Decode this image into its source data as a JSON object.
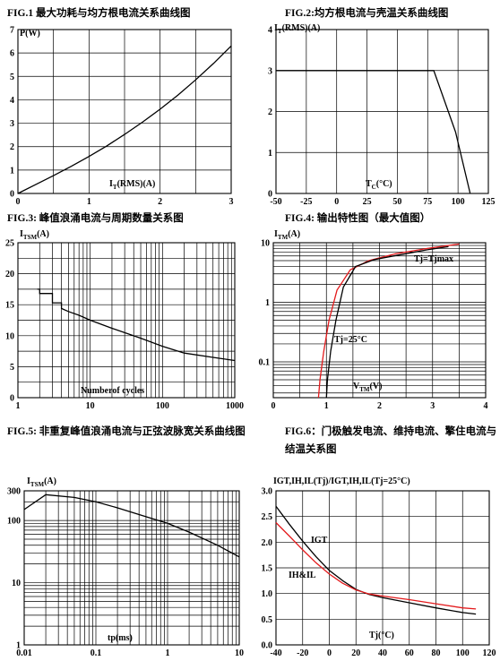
{
  "chart_data": [
    {
      "id": "fig1",
      "type": "line",
      "title": "FIG.1  最大功耗与均方根电流关系曲线图",
      "ylabel": "P(W)",
      "xlabel": "I T(RMS)(A)",
      "xscale": "linear",
      "yscale": "linear",
      "xlim": [
        0,
        3
      ],
      "ylim": [
        0,
        7
      ],
      "xticks": [
        0,
        1,
        2,
        3
      ],
      "yticks": [
        0,
        1,
        2,
        3,
        4,
        5,
        6,
        7
      ],
      "xgrid": [
        0,
        0.5,
        1,
        1.5,
        2,
        2.5,
        3
      ],
      "ygrid": [
        0,
        1,
        2,
        3,
        4,
        5,
        6,
        7
      ],
      "grid": true,
      "series": [
        {
          "color": "#000000",
          "x": [
            0,
            0.25,
            0.5,
            0.75,
            1.0,
            1.25,
            1.5,
            1.75,
            2.0,
            2.25,
            2.5,
            2.75,
            3.0
          ],
          "y": [
            0,
            0.38,
            0.76,
            1.16,
            1.58,
            2.03,
            2.52,
            3.04,
            3.6,
            4.2,
            4.85,
            5.55,
            6.3
          ]
        }
      ]
    },
    {
      "id": "fig2",
      "type": "line",
      "title": "FIG.2:均方根电流与壳温关系曲线图",
      "ylabel": "I T(RMS)(A)",
      "xlabel": "T C(°C)",
      "xscale": "linear",
      "yscale": "linear",
      "xlim": [
        -50,
        125
      ],
      "ylim": [
        0,
        4
      ],
      "xticks": [
        -50,
        -25,
        0,
        25,
        50,
        75,
        100,
        125
      ],
      "yticks": [
        0,
        1,
        2,
        3,
        4
      ],
      "xgrid": [
        -50,
        -25,
        0,
        25,
        50,
        75,
        100,
        125
      ],
      "ygrid": [
        0,
        1,
        2,
        3,
        4
      ],
      "grid": true,
      "series": [
        {
          "color": "#000000",
          "x": [
            -50,
            80,
            98,
            110
          ],
          "y": [
            3,
            3,
            1.5,
            0
          ]
        }
      ]
    },
    {
      "id": "fig3",
      "type": "line",
      "title": "FIG.3:  峰值浪涌电流与周期数量关系图",
      "ylabel": "I TSM(A)",
      "xlabel": "Number of cycles",
      "xscale": "log",
      "yscale": "linear",
      "xlim": [
        1,
        1000
      ],
      "ylim": [
        0,
        25
      ],
      "xticks": [
        1,
        10,
        100,
        1000
      ],
      "yticks": [
        0,
        5,
        10,
        15,
        20,
        25
      ],
      "xgrid": [
        1,
        2,
        3,
        4,
        5,
        6,
        7,
        8,
        9,
        10,
        20,
        30,
        40,
        50,
        60,
        70,
        80,
        90,
        100,
        200,
        300,
        400,
        500,
        600,
        700,
        800,
        900,
        1000
      ],
      "ygrid": [
        0,
        2.5,
        5,
        7.5,
        10,
        12.5,
        15,
        17.5,
        20,
        22.5,
        25
      ],
      "grid": true,
      "series": [
        {
          "color": "#000000",
          "x": [
            1.85,
            2.0,
            2.0,
            3.0,
            3.0,
            4.0,
            4.0,
            5.0,
            7,
            10,
            20,
            50,
            100,
            200,
            500,
            1000
          ],
          "y": [
            17.5,
            17.5,
            16.8,
            16.8,
            15.3,
            15.3,
            14.4,
            13.9,
            13.3,
            12.5,
            11.2,
            9.6,
            8.3,
            7.2,
            6.5,
            6.0
          ]
        }
      ]
    },
    {
      "id": "fig4",
      "type": "line",
      "title": "FIG.4:  输出特性图（最大值图）",
      "ylabel": "I TM(A)",
      "xlabel": "V TM(V)",
      "xscale": "linear",
      "yscale": "log",
      "xlim": [
        0,
        4
      ],
      "ylim": [
        0.025,
        10
      ],
      "xticks": [
        0,
        1,
        2,
        3,
        4
      ],
      "ytick_labels": {
        "10": "10",
        "1": "1",
        "0.1": "0.1"
      },
      "xgrid": [
        0,
        0.5,
        1,
        1.5,
        2,
        2.5,
        3,
        3.5,
        4
      ],
      "ygrid": [
        0.03,
        0.04,
        0.05,
        0.06,
        0.07,
        0.08,
        0.09,
        0.1,
        0.2,
        0.3,
        0.4,
        0.5,
        0.6,
        0.7,
        0.8,
        0.9,
        1,
        2,
        3,
        4,
        5,
        6,
        7,
        8,
        9,
        10
      ],
      "grid": true,
      "annotations": [
        "Tj=Tjmax",
        "Tj=25°C"
      ],
      "series": [
        {
          "name": "Tj=Tjmax",
          "color": "#e31a1c",
          "x": [
            0.85,
            0.88,
            0.95,
            1.05,
            1.2,
            1.45,
            1.8,
            2.3,
            2.9,
            3.5
          ],
          "y": [
            0.025,
            0.05,
            0.15,
            0.5,
            1.6,
            3.5,
            5.0,
            6.5,
            8.0,
            9.5
          ]
        },
        {
          "name": "Tj=25°C",
          "color": "#000000",
          "x": [
            1.0,
            1.02,
            1.08,
            1.18,
            1.32,
            1.55,
            1.9,
            2.4,
            2.9,
            3.3
          ],
          "y": [
            0.025,
            0.05,
            0.15,
            0.5,
            1.8,
            4.0,
            5.2,
            6.3,
            7.6,
            8.6
          ]
        }
      ]
    },
    {
      "id": "fig5",
      "type": "line",
      "title": "FIG.5:  非重复峰值浪涌电流与正弦波脉宽关系曲线图",
      "ylabel": "I TSM(A)",
      "xlabel": "tp(ms)",
      "xscale": "log",
      "yscale": "log",
      "xlim": [
        0.01,
        10
      ],
      "ylim": [
        1,
        300
      ],
      "xticks": [
        0.01,
        0.1,
        1,
        10
      ],
      "ytick_labels": {
        "300": "300",
        "100": "100",
        "10": "10",
        "1": "1"
      },
      "xgrid": [
        0.01,
        0.02,
        0.03,
        0.04,
        0.05,
        0.06,
        0.07,
        0.08,
        0.09,
        0.1,
        0.2,
        0.3,
        0.4,
        0.5,
        0.6,
        0.7,
        0.8,
        0.9,
        1,
        2,
        3,
        4,
        5,
        6,
        7,
        8,
        9,
        10
      ],
      "ygrid": [
        1,
        2,
        3,
        4,
        5,
        6,
        7,
        8,
        9,
        10,
        20,
        30,
        40,
        50,
        60,
        70,
        80,
        90,
        100,
        200,
        300
      ],
      "grid": true,
      "series": [
        {
          "color": "#000000",
          "x": [
            0.01,
            0.02,
            0.05,
            0.1,
            0.2,
            0.5,
            1,
            2,
            5,
            10
          ],
          "y": [
            150,
            260,
            235,
            200,
            160,
            115,
            90,
            65,
            40,
            26
          ]
        }
      ]
    },
    {
      "id": "fig6",
      "type": "line",
      "title": "FIG.6：门极触发电流、维持电流、擎住电流与结温关系图",
      "ylabel": "IGT,IH,IL(Tj)/IGT,IH,IL(Tj=25°C)",
      "xlabel": "Tj(°C)",
      "xscale": "linear",
      "yscale": "linear",
      "xlim": [
        -40,
        120
      ],
      "ylim": [
        0,
        3
      ],
      "xticks": [
        -40,
        -20,
        0,
        20,
        40,
        60,
        80,
        100,
        120
      ],
      "yticks": [
        0,
        0.5,
        1.0,
        1.5,
        2.0,
        2.5,
        3.0
      ],
      "ytick_labels": [
        "0.0",
        "0.5",
        "1.0",
        "1.5",
        "2.0",
        "2.5",
        "3.0"
      ],
      "xgrid": [
        -40,
        -20,
        0,
        20,
        40,
        60,
        80,
        100,
        120
      ],
      "ygrid": [
        0,
        0.5,
        1,
        1.5,
        2,
        2.5,
        3
      ],
      "grid": true,
      "annotations": [
        "IGT",
        "IH&IL"
      ],
      "series": [
        {
          "name": "IGT",
          "color": "#000000",
          "x": [
            -40,
            -30,
            -20,
            -10,
            0,
            10,
            20,
            30,
            40,
            60,
            80,
            100,
            110
          ],
          "y": [
            2.7,
            2.35,
            2.02,
            1.72,
            1.45,
            1.25,
            1.08,
            0.98,
            0.92,
            0.82,
            0.72,
            0.63,
            0.6
          ]
        },
        {
          "name": "IH&IL",
          "color": "#e31a1c",
          "x": [
            -40,
            -30,
            -20,
            -10,
            0,
            10,
            20,
            30,
            40,
            60,
            80,
            100,
            110
          ],
          "y": [
            2.38,
            2.12,
            1.85,
            1.6,
            1.38,
            1.2,
            1.07,
            0.99,
            0.95,
            0.88,
            0.8,
            0.72,
            0.7
          ]
        }
      ]
    }
  ]
}
